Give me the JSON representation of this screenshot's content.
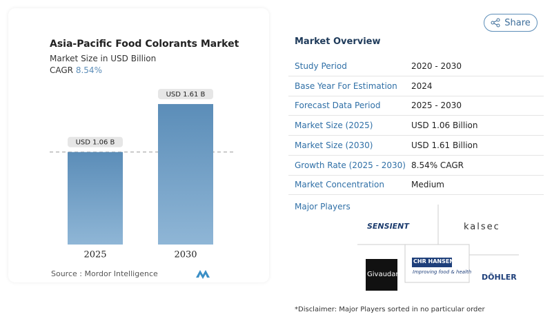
{
  "chart_data": {
    "type": "bar",
    "title": "Asia-Pacific Food Colorants Market",
    "subtitle": "Market Size in USD Billion",
    "cagr_label": "CAGR",
    "cagr_value": "8.54%",
    "categories": [
      "2025",
      "2030"
    ],
    "values": [
      1.06,
      1.61
    ],
    "value_labels": [
      "USD 1.06 B",
      "USD 1.61 B"
    ],
    "color": "#5b8db8",
    "ylim": [
      0,
      1.8
    ],
    "source": "Source :  Mordor Intelligence"
  },
  "share": "Share",
  "overview": {
    "title": "Market Overview",
    "rows": [
      [
        "Study Period",
        "2020 - 2030"
      ],
      [
        "Base Year For Estimation",
        "2024"
      ],
      [
        "Forecast Data Period",
        "2025 - 2030"
      ],
      [
        "Market Size (2025)",
        "USD 1.06 Billion"
      ],
      [
        "Market Size (2030)",
        "USD 1.61 Billion"
      ],
      [
        "Growth Rate (2025 - 2030)",
        "8.54% CAGR"
      ],
      [
        "Market Concentration",
        "Medium"
      ]
    ],
    "players_title": "Major Players",
    "players": [
      "SENSIENT",
      "kalsec",
      "Givaudan",
      "CHR HANSEN",
      "Improving food & health",
      "DÖHLER"
    ],
    "disclaimer": "*Disclaimer: Major Players sorted in no particular order"
  }
}
